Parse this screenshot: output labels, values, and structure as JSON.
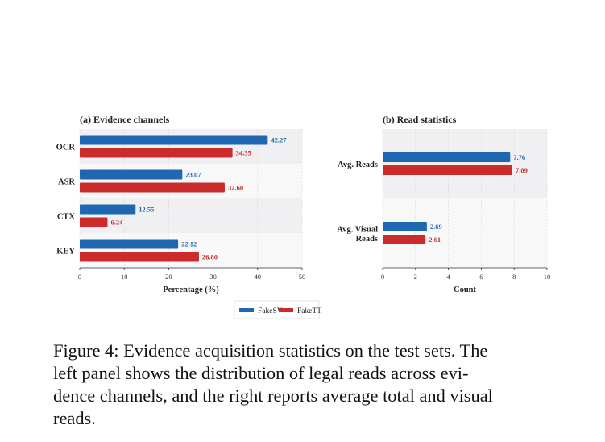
{
  "colors": {
    "FakeSV": "#1f66b3",
    "FakeTT": "#cc2b2b",
    "band_dark": "#f0f0f2",
    "band_light": "#f8f8f9",
    "grid": "#d6d6d6"
  },
  "chart_data": [
    {
      "type": "bar",
      "orientation": "horizontal",
      "title": "(a) Evidence channels",
      "xlabel": "Percentage (%)",
      "ylabel": "",
      "xlim": [
        0,
        50
      ],
      "xticks": [
        "0",
        "10",
        "20",
        "30",
        "40",
        "50"
      ],
      "categories": [
        "OCR",
        "ASR",
        "CTX",
        "KEY"
      ],
      "series": [
        {
          "name": "FakeSV",
          "values": [
            42.27,
            23.07,
            12.55,
            22.12
          ],
          "labels": [
            "42.27",
            "23.07",
            "12.55",
            "22.12"
          ]
        },
        {
          "name": "FakeTT",
          "values": [
            34.35,
            32.6,
            6.24,
            26.8
          ],
          "labels": [
            "34.35",
            "32.60",
            "6.24",
            "26.80"
          ]
        }
      ],
      "grid": true
    },
    {
      "type": "bar",
      "orientation": "horizontal",
      "title": "(b) Read statistics",
      "xlabel": "Count",
      "ylabel": "",
      "xlim": [
        0,
        10
      ],
      "xticks": [
        "0",
        "2",
        "4",
        "6",
        "8",
        "10"
      ],
      "categories": [
        "Avg. Reads",
        "Avg. Visual Reads"
      ],
      "category_lines": [
        [
          "Avg. Reads"
        ],
        [
          "Avg. Visual",
          "Reads"
        ]
      ],
      "series": [
        {
          "name": "FakeSV",
          "values": [
            7.76,
            2.69
          ],
          "labels": [
            "7.76",
            "2.69"
          ]
        },
        {
          "name": "FakeTT",
          "values": [
            7.89,
            2.61
          ],
          "labels": [
            "7.89",
            "2.61"
          ]
        }
      ],
      "grid": true
    }
  ],
  "legend": {
    "placement": "bottom-center",
    "entries": [
      "FakeSV",
      "FakeTT"
    ]
  },
  "caption": {
    "lines": [
      "Figure 4: Evidence acquisition statistics on the test sets. The",
      "left panel shows the distribution of legal reads across evi-",
      "dence channels, and the right reports average total and visual",
      "reads."
    ]
  }
}
